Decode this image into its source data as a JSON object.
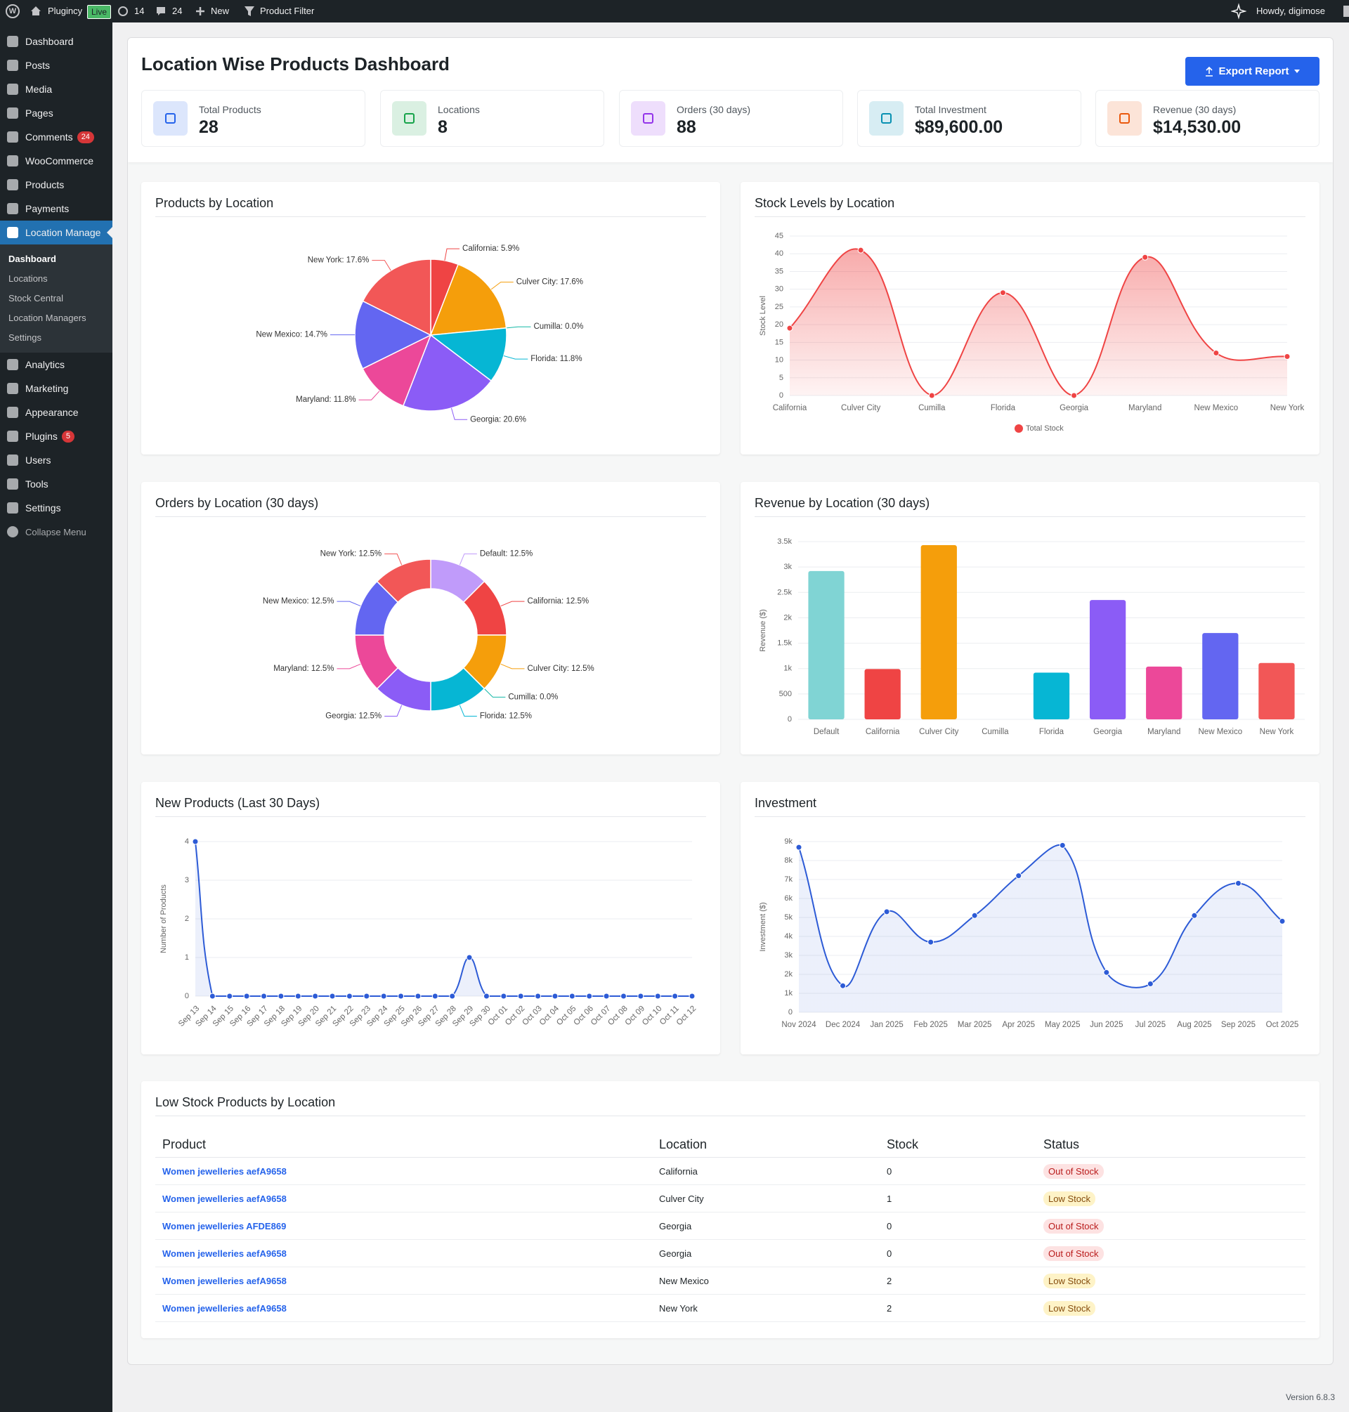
{
  "admin_bar": {
    "site": "Plugincy",
    "badge": "Live",
    "updates": 14,
    "comments": 24,
    "new": "New",
    "filter": "Product Filter",
    "greeting": "Howdy, digimose"
  },
  "sidebar": {
    "menu": [
      {
        "label": "Dashboard"
      },
      {
        "label": "Posts"
      },
      {
        "label": "Media"
      },
      {
        "label": "Pages"
      },
      {
        "label": "Comments",
        "badge": 24
      },
      {
        "label": "WooCommerce"
      },
      {
        "label": "Products"
      },
      {
        "label": "Payments"
      },
      {
        "label": "Location Manage",
        "active": true
      }
    ],
    "submenu": [
      {
        "label": "Dashboard",
        "current": true
      },
      {
        "label": "Locations"
      },
      {
        "label": "Stock Central"
      },
      {
        "label": "Location Managers"
      },
      {
        "label": "Settings"
      }
    ],
    "menu_after": [
      {
        "label": "Analytics"
      },
      {
        "label": "Marketing"
      },
      {
        "label": "Appearance"
      },
      {
        "label": "Plugins",
        "badge": 5
      },
      {
        "label": "Users"
      },
      {
        "label": "Tools"
      },
      {
        "label": "Settings"
      },
      {
        "label": "Collapse Menu"
      }
    ]
  },
  "header": {
    "title": "Location Wise Products Dashboard",
    "button": "Export Report"
  },
  "stats": [
    {
      "label": "Total Products",
      "value": 28,
      "color": "#2563eb"
    },
    {
      "label": "Locations",
      "value": 8,
      "color": "#16a34a"
    },
    {
      "label": "Orders (30 days)",
      "value": 88,
      "color": "#9333ea"
    },
    {
      "label": "Total Investment",
      "value": "$89,600.00",
      "color": "#0891b2"
    },
    {
      "label": "Revenue (30 days)",
      "value": "$14,530.00",
      "color": "#ea580c"
    }
  ],
  "chart_data": [
    {
      "type": "pie",
      "title": "Products by Location",
      "values": [
        5.9,
        17.6,
        0.0,
        11.8,
        20.6,
        11.8,
        14.7,
        17.6
      ],
      "value_labels": [
        "California: 5.9%",
        "Culver City: 17.6%",
        "Cumilla: 0.0%",
        "Florida: 11.8%",
        "Georgia: 20.6%",
        "Maryland: 11.8%",
        "New Mexico: 14.7%",
        "New York: 17.6%"
      ],
      "colors": [
        "#ef4444",
        "#f59e0b",
        "#14b8a6",
        "#06b6d4",
        "#8b5cf6",
        "#ec4899",
        "#6366f1",
        "#f25757"
      ]
    },
    {
      "type": "line",
      "title": "Stock Levels by Location",
      "categories": [
        "California",
        "Culver City",
        "Cumilla",
        "Florida",
        "Georgia",
        "Maryland",
        "New Mexico",
        "New York"
      ],
      "series": [
        {
          "name": "Total Stock",
          "color": "#ef4444",
          "values": [
            19,
            41,
            0,
            29,
            0,
            39,
            12,
            11
          ]
        }
      ],
      "ylim": [
        0,
        45
      ],
      "yticks": [
        0,
        5,
        10,
        15,
        20,
        25,
        30,
        35,
        40,
        45
      ],
      "ylabel": "Stock Level",
      "grid": true,
      "fill": "gradient",
      "legend": "bottom"
    },
    {
      "type": "doughnut",
      "title": "Orders by Location (30 days)",
      "values": [
        12.5,
        12.5,
        12.5,
        0.0,
        12.5,
        12.5,
        12.5,
        12.5,
        12.5
      ],
      "value_labels": [
        "Default: 12.5%",
        "California: 12.5%",
        "Culver City: 12.5%",
        "Cumilla: 0.0%",
        "Florida: 12.5%",
        "Georgia: 12.5%",
        "Maryland: 12.5%",
        "New Mexico: 12.5%",
        "New York: 12.5%"
      ],
      "colors": [
        "#c09bfa",
        "#ef4444",
        "#f59e0b",
        "#14b8a6",
        "#06b6d4",
        "#8b5cf6",
        "#ec4899",
        "#6366f1",
        "#f25757"
      ]
    },
    {
      "type": "bar",
      "title": "Revenue by Location (30 days)",
      "categories": [
        "Default",
        "California",
        "Culver City",
        "Cumilla",
        "Florida",
        "Georgia",
        "Maryland",
        "New Mexico",
        "New York"
      ],
      "values": [
        2920,
        990,
        3430,
        0,
        920,
        2350,
        1040,
        1700,
        1110
      ],
      "colors": [
        "#80d4d4",
        "#ef4444",
        "#f59e0b",
        "#14b8a6",
        "#06b6d4",
        "#8b5cf6",
        "#ec4899",
        "#6366f1",
        "#f25757"
      ],
      "ylim": [
        0,
        3500
      ],
      "yticks": [
        0,
        500,
        {
          "value": 1000,
          "label": "1k"
        },
        {
          "value": 1500,
          "label": "1.5k"
        },
        {
          "value": 2000,
          "label": "2k"
        },
        {
          "value": 2500,
          "label": "2.5k"
        },
        {
          "value": 3000,
          "label": "3k"
        },
        {
          "value": 3500,
          "label": "3.5k"
        }
      ],
      "ylabel": "Revenue ($)",
      "grid": true
    },
    {
      "type": "line",
      "title": "New Products (Last 30 Days)",
      "categories": [
        "Sep 13",
        "Sep 14",
        "Sep 15",
        "Sep 16",
        "Sep 17",
        "Sep 18",
        "Sep 19",
        "Sep 20",
        "Sep 21",
        "Sep 22",
        "Sep 23",
        "Sep 24",
        "Sep 25",
        "Sep 26",
        "Sep 27",
        "Sep 28",
        "Sep 29",
        "Sep 30",
        "Oct 01",
        "Oct 02",
        "Oct 03",
        "Oct 04",
        "Oct 05",
        "Oct 06",
        "Oct 07",
        "Oct 08",
        "Oct 09",
        "Oct 10",
        "Oct 11",
        "Oct 12"
      ],
      "series": [
        {
          "color": "#2d5bd6",
          "values": [
            4,
            0,
            0,
            0,
            0,
            0,
            0,
            0,
            0,
            0,
            0,
            0,
            0,
            0,
            0,
            0,
            1,
            0,
            0,
            0,
            0,
            0,
            0,
            0,
            0,
            0,
            0,
            0,
            0,
            0
          ]
        }
      ],
      "ylim": [
        0,
        4
      ],
      "yticks": [
        0,
        1,
        2,
        3,
        4
      ],
      "ylabel": "Number of Products",
      "grid": true,
      "fill": "flat"
    },
    {
      "type": "line",
      "title": "Investment",
      "categories": [
        "Nov 2024",
        "Dec 2024",
        "Jan 2025",
        "Feb 2025",
        "Mar 2025",
        "Apr 2025",
        "May 2025",
        "Jun 2025",
        "Jul 2025",
        "Aug 2025",
        "Sep 2025",
        "Oct 2025"
      ],
      "series": [
        {
          "color": "#2d5bd6",
          "values": [
            8700,
            1400,
            5300,
            3700,
            5100,
            7200,
            8800,
            2100,
            1500,
            5100,
            6800,
            4800
          ]
        }
      ],
      "ylim": [
        0,
        9000
      ],
      "yticks": [
        0,
        {
          "value": 1000,
          "label": "1k"
        },
        {
          "value": 2000,
          "label": "2k"
        },
        {
          "value": 3000,
          "label": "3k"
        },
        {
          "value": 4000,
          "label": "4k"
        },
        {
          "value": 5000,
          "label": "5k"
        },
        {
          "value": 6000,
          "label": "6k"
        },
        {
          "value": 7000,
          "label": "7k"
        },
        {
          "value": 8000,
          "label": "8k"
        },
        {
          "value": 9000,
          "label": "9k"
        }
      ],
      "ylabel": "Investment ($)",
      "grid": true,
      "fill": "flat"
    }
  ],
  "table": {
    "title": "Low Stock Products by Location",
    "columns": [
      "Product",
      "Location",
      "Stock",
      "Status"
    ],
    "rows": [
      [
        "Women jewelleries aefA9658",
        "California",
        0,
        "Out of Stock"
      ],
      [
        "Women jewelleries aefA9658",
        "Culver City",
        1,
        "Low Stock"
      ],
      [
        "Women jewelleries AFDE869",
        "Georgia",
        0,
        "Out of Stock"
      ],
      [
        "Women jewelleries aefA9658",
        "Georgia",
        0,
        "Out of Stock"
      ],
      [
        "Women jewelleries aefA9658",
        "New Mexico",
        2,
        "Low Stock"
      ],
      [
        "Women jewelleries aefA9658",
        "New York",
        2,
        "Low Stock"
      ]
    ],
    "status_colors": {
      "Out of Stock": "#b91c1c",
      "Low Stock": "#854d0e"
    },
    "status_backgrounds": {
      "Out of Stock": "#fde2e2",
      "Low Stock": "#fef3c7"
    }
  },
  "footer": {
    "version": "Version 6.8.3"
  }
}
